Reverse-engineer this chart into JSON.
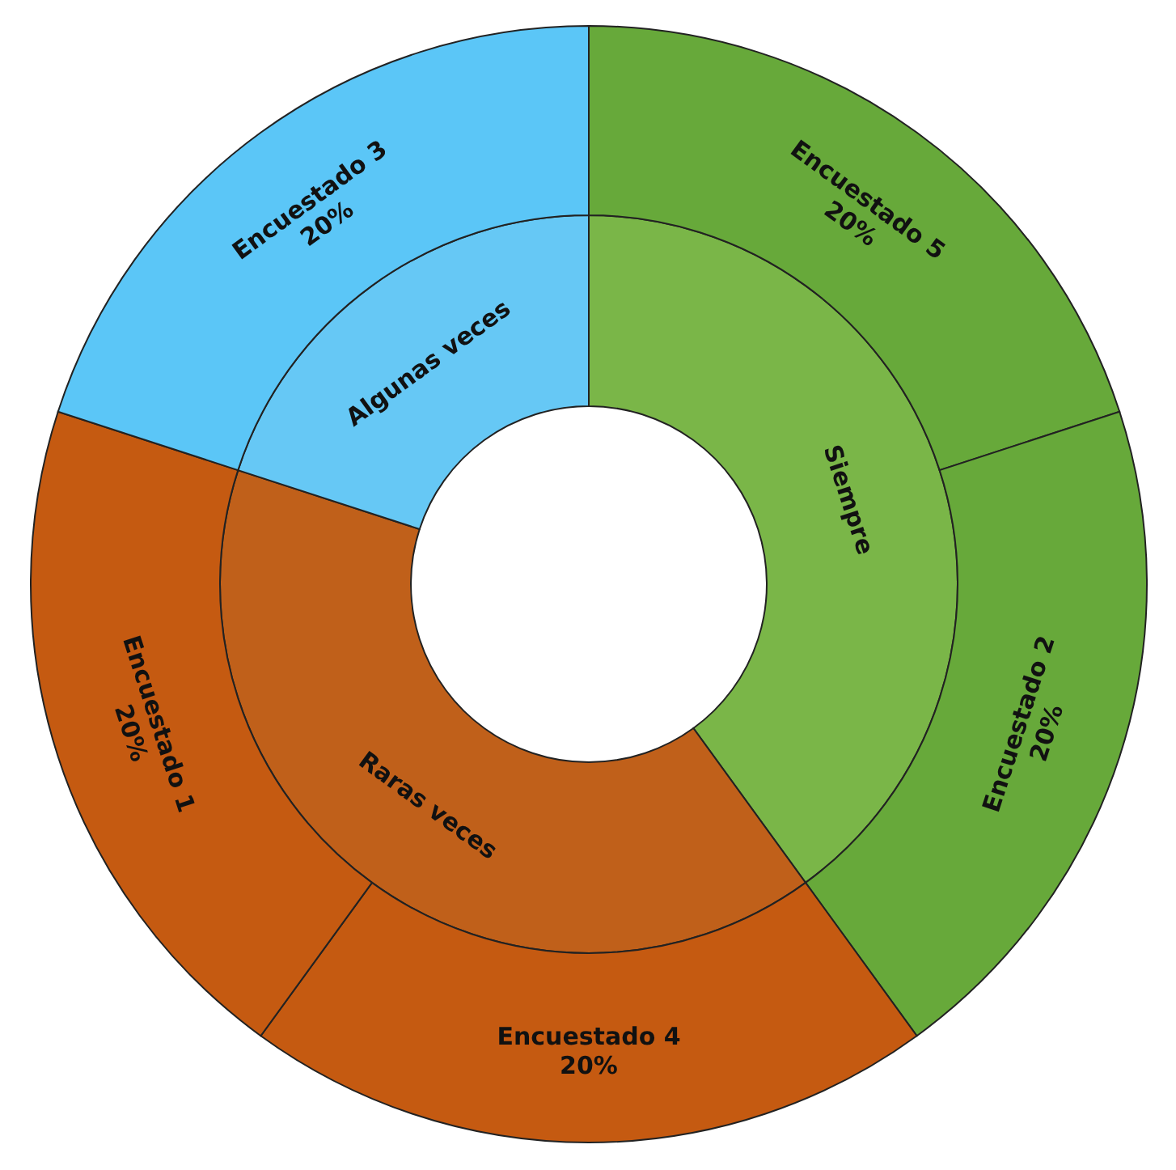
{
  "chart_data": [
    {
      "type": "donut",
      "categories": [
        "Siempre",
        "Raras veces",
        "Algunas veces"
      ],
      "values": [
        40,
        40,
        20
      ],
      "colors": [
        "#7ab648",
        "#c0601a",
        "#66c8f5"
      ]
    },
    {
      "type": "donut",
      "categories": [
        "Encuestado 5",
        "Encuestado 2",
        "Encuestado 4",
        "Encuestado 1",
        "Encuestado 3"
      ],
      "values": [
        20,
        20,
        20,
        20,
        20
      ],
      "value_labels": [
        "20%",
        "20%",
        "20%",
        "20%",
        "20%"
      ],
      "colors": [
        "#67a93a",
        "#67a93a",
        "#c55a11",
        "#c55a11",
        "#5bc6f7"
      ]
    }
  ]
}
